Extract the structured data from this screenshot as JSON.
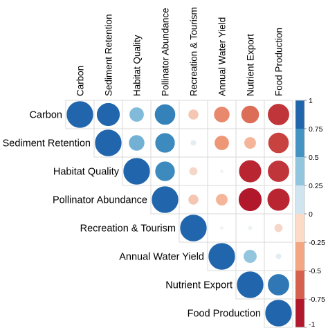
{
  "chart_data": {
    "type": "heatmap",
    "style": "upper-triangle correlation matrix with circle markers",
    "variables": [
      "Carbon",
      "Sediment Retention",
      "Habitat Quality",
      "Pollinator Abundance",
      "Recreation & Tourism",
      "Annual Water Yield",
      "Nutrient Export",
      "Food Production"
    ],
    "values": [
      [
        1,
        0.75,
        0.3,
        0.6,
        -0.15,
        -0.35,
        -0.45,
        -0.65
      ],
      [
        null,
        1,
        0.35,
        0.55,
        0.05,
        -0.3,
        -0.2,
        -0.6
      ],
      [
        null,
        null,
        1,
        0.55,
        -0.1,
        0.02,
        -0.7,
        -0.65
      ],
      [
        null,
        null,
        null,
        1,
        -0.15,
        -0.2,
        -0.75,
        -0.7
      ],
      [
        null,
        null,
        null,
        null,
        1,
        0.02,
        0.03,
        -0.1
      ],
      [
        null,
        null,
        null,
        null,
        null,
        1,
        0.25,
        0.05
      ],
      [
        null,
        null,
        null,
        null,
        null,
        null,
        1,
        0.65
      ],
      [
        null,
        null,
        null,
        null,
        null,
        null,
        null,
        1
      ]
    ],
    "colorbar": {
      "range": [
        -1,
        1
      ],
      "ticks": [
        "1",
        "0.75",
        "0.5",
        "0.25",
        "0",
        "-0.25",
        "-0.5",
        "-0.75",
        "-1"
      ],
      "bands": [
        "#b2182b",
        "#d6604d",
        "#f4a582",
        "#fddbc7",
        "#d1e5f0",
        "#92c5de",
        "#4393c3",
        "#2166ac"
      ]
    },
    "grid": true
  }
}
